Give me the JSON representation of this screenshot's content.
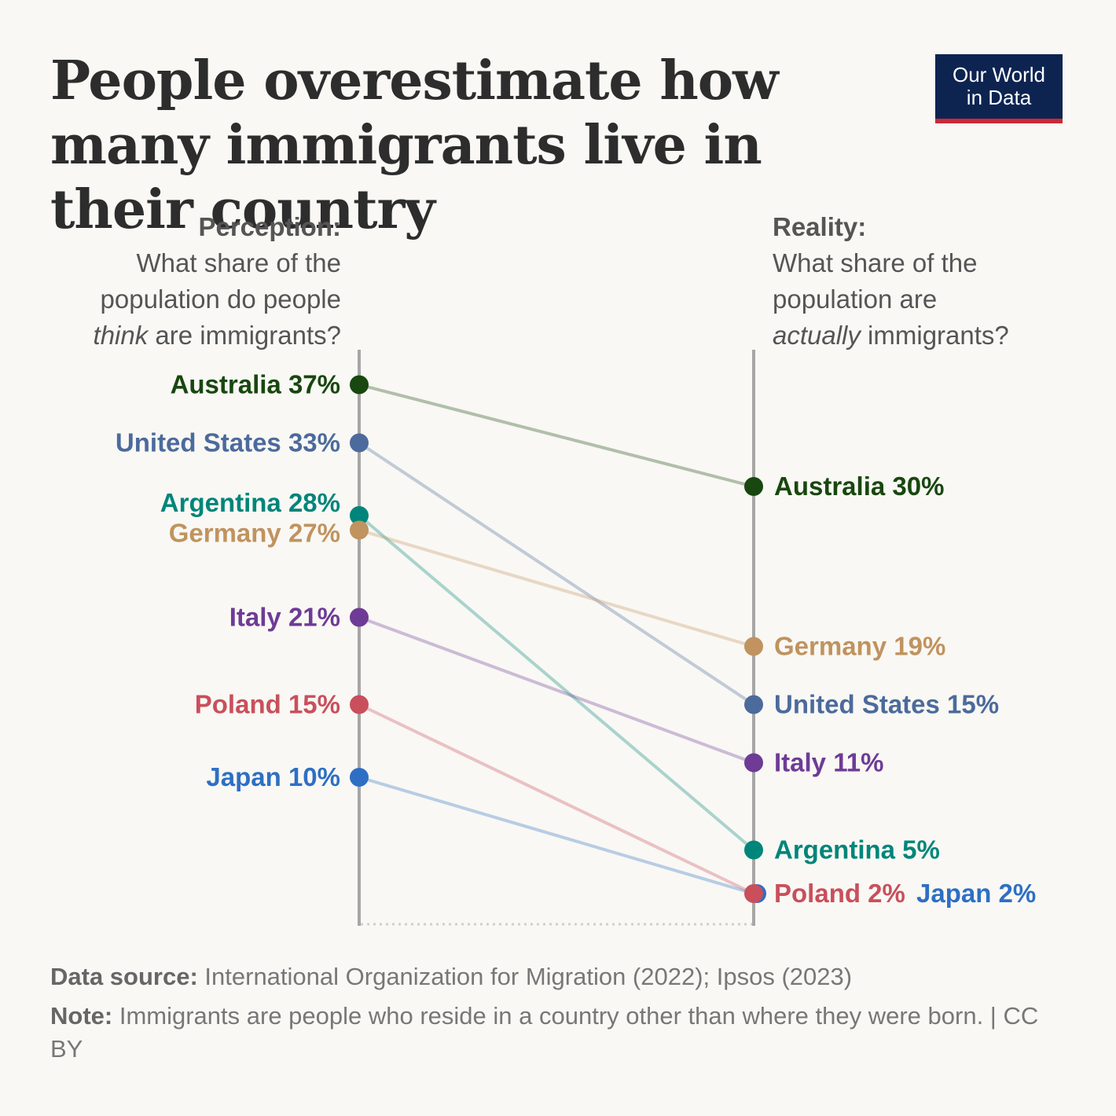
{
  "title": "People overestimate how many immigrants live in their country",
  "logo": {
    "line1": "Our World",
    "line2": "in Data"
  },
  "left_header": {
    "bold": "Perception:",
    "line1": "What share of the",
    "line2": "population do people",
    "em": "think",
    "rest": " are immigrants?"
  },
  "right_header": {
    "bold": "Reality:",
    "line1": "What share of the",
    "line2": "population are",
    "em": "actually",
    "rest": " immigrants?"
  },
  "footer": {
    "source_label": "Data source:",
    "source_text": " International Organization for Migration (2022); Ipsos (2023)",
    "note_label": "Note:",
    "note_text": " Immigrants are people who reside in a country other than where they were born. | CC BY"
  },
  "chart_data": {
    "type": "slope",
    "unit": "%",
    "columns": [
      "Perception",
      "Reality"
    ],
    "series": [
      {
        "name": "Australia",
        "perception": 37,
        "reality": 30,
        "color": "#18470f"
      },
      {
        "name": "United States",
        "perception": 33,
        "reality": 15,
        "color": "#4c6a9c"
      },
      {
        "name": "Argentina",
        "perception": 28,
        "reality": 5,
        "color": "#00857a"
      },
      {
        "name": "Germany",
        "perception": 27,
        "reality": 19,
        "color": "#c0935f"
      },
      {
        "name": "Italy",
        "perception": 21,
        "reality": 11,
        "color": "#6e3b96"
      },
      {
        "name": "Poland",
        "perception": 15,
        "reality": 2,
        "color": "#c94f5c"
      },
      {
        "name": "Japan",
        "perception": 10,
        "reality": 2,
        "color": "#2e6fc4"
      }
    ],
    "labels": {
      "perception": [
        "Australia 37%",
        "United States 33%",
        "Argentina 28%",
        "Germany 27%",
        "Italy 21%",
        "Poland 15%",
        "Japan 10%"
      ],
      "reality": [
        "Australia 30%",
        "United States 15%",
        "Argentina 5%",
        "Germany 19%",
        "Italy 11%",
        "Poland 2%",
        "Japan 2%"
      ]
    },
    "ylim": [
      0,
      40
    ]
  }
}
